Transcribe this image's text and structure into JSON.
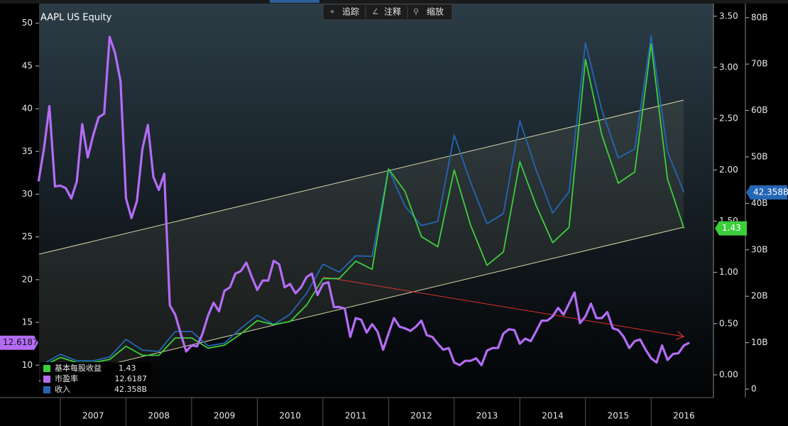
{
  "toolbar": [
    "追踪",
    "注释",
    "缩放"
  ],
  "chart_data": {
    "type": "line",
    "title": "AAPL US Equity",
    "xlim": [
      2006.675,
      2016.95
    ],
    "xticks": [
      2007,
      2008,
      2009,
      2010,
      2011,
      2012,
      2013,
      2014,
      2015,
      2016
    ],
    "ylim": [
      6.2,
      52.3
    ],
    "yticks": [
      10,
      15,
      20,
      25,
      30,
      35,
      40,
      45,
      50
    ],
    "y2lim": [
      -0.222,
      3.624
    ],
    "y2ticks": [
      {
        "value": 0,
        "label": "0.00"
      },
      {
        "value": 0.5,
        "label": "0.50"
      },
      {
        "value": 1,
        "label": "1.00"
      },
      {
        "value": 1.5,
        "label": "1.50"
      },
      {
        "value": 2,
        "label": "2.00"
      },
      {
        "value": 2.5,
        "label": "2.50"
      },
      {
        "value": 3,
        "label": "3.00"
      },
      {
        "value": 3.5,
        "label": "3.50"
      }
    ],
    "y3lim": [
      -1.835,
      83.03
    ],
    "y3ticks": [
      0,
      {
        "value": 10,
        "label": "10B"
      },
      {
        "value": 20,
        "label": "20B"
      },
      {
        "value": 30,
        "label": "30B"
      },
      {
        "value": 40,
        "label": "40B"
      },
      {
        "value": 50,
        "label": "50B"
      },
      {
        "value": 60,
        "label": "60B"
      },
      {
        "value": 70,
        "label": "70B"
      },
      {
        "value": 80,
        "label": "80B"
      }
    ],
    "legend": "lower left",
    "series": [
      {
        "name": "基本每股收益",
        "color": "#3ccf3c",
        "axis": "y2",
        "x": [
          2006.75,
          2007,
          2007.25,
          2007.5,
          2007.75,
          2008,
          2008.25,
          2008.5,
          2008.75,
          2009,
          2009.25,
          2009.5,
          2009.75,
          2010,
          2010.25,
          2010.5,
          2010.75,
          2011,
          2011.25,
          2011.5,
          2011.75,
          2012,
          2012.25,
          2012.5,
          2012.75,
          2013,
          2013.25,
          2013.5,
          2013.75,
          2014,
          2014.25,
          2014.5,
          2014.75,
          2015,
          2015.25,
          2015.5,
          2015.75,
          2016,
          2016.25,
          2016.5
        ],
        "values": [
          0.09,
          0.17,
          0.12,
          0.12,
          0.15,
          0.28,
          0.19,
          0.19,
          0.36,
          0.36,
          0.26,
          0.29,
          0.4,
          0.53,
          0.49,
          0.52,
          0.68,
          0.94,
          0.94,
          1.11,
          1.03,
          2.01,
          1.79,
          1.35,
          1.25,
          2.0,
          1.46,
          1.07,
          1.2,
          2.08,
          1.65,
          1.29,
          1.44,
          3.08,
          2.34,
          1.87,
          1.98,
          3.23,
          1.91,
          1.43
        ]
      },
      {
        "name": "市盈率",
        "color": "#b46cf5",
        "axis": "y",
        "x": [
          2006.667,
          2006.75,
          2006.833,
          2006.917,
          2007,
          2007.083,
          2007.167,
          2007.25,
          2007.333,
          2007.417,
          2007.5,
          2007.583,
          2007.667,
          2007.75,
          2007.833,
          2007.917,
          2008,
          2008.083,
          2008.167,
          2008.25,
          2008.333,
          2008.417,
          2008.5,
          2008.583,
          2008.667,
          2008.75,
          2008.833,
          2008.917,
          2009,
          2009.083,
          2009.167,
          2009.25,
          2009.333,
          2009.417,
          2009.5,
          2009.583,
          2009.667,
          2009.75,
          2009.833,
          2009.917,
          2010,
          2010.083,
          2010.167,
          2010.25,
          2010.333,
          2010.417,
          2010.5,
          2010.583,
          2010.667,
          2010.75,
          2010.833,
          2010.917,
          2011,
          2011.083,
          2011.167,
          2011.25,
          2011.333,
          2011.417,
          2011.5,
          2011.583,
          2011.667,
          2011.75,
          2011.833,
          2011.917,
          2012,
          2012.083,
          2012.167,
          2012.25,
          2012.333,
          2012.417,
          2012.5,
          2012.583,
          2012.667,
          2012.75,
          2012.833,
          2012.917,
          2013,
          2013.083,
          2013.167,
          2013.25,
          2013.333,
          2013.417,
          2013.5,
          2013.583,
          2013.667,
          2013.75,
          2013.833,
          2013.917,
          2014,
          2014.083,
          2014.167,
          2014.25,
          2014.333,
          2014.417,
          2014.5,
          2014.583,
          2014.667,
          2014.75,
          2014.833,
          2014.917,
          2015,
          2015.083,
          2015.167,
          2015.25,
          2015.333,
          2015.417,
          2015.5,
          2015.583,
          2015.667,
          2015.75,
          2015.833,
          2015.917,
          2016,
          2016.083,
          2016.167,
          2016.25,
          2016.333,
          2016.417,
          2016.5,
          2016.583
        ],
        "values": [
          31.5,
          35.3,
          40.3,
          30.9,
          31.0,
          30.7,
          29.5,
          31.5,
          38.2,
          34.3,
          36.9,
          39.0,
          39.4,
          48.4,
          46.5,
          43.2,
          29.5,
          27.2,
          29.2,
          35.3,
          38.1,
          32.0,
          30.5,
          32.4,
          17.0,
          15.9,
          13.7,
          11.6,
          12.3,
          12.2,
          13.7,
          15.8,
          17.3,
          16.3,
          18.7,
          19.1,
          20.7,
          21.0,
          22.0,
          20.3,
          18.8,
          19.9,
          19.9,
          22.2,
          21.8,
          19.1,
          19.5,
          18.4,
          19.1,
          20.3,
          20.7,
          18.2,
          19.5,
          19.7,
          16.8,
          16.8,
          16.6,
          13.3,
          15.5,
          15.3,
          13.8,
          14.8,
          13.9,
          11.8,
          13.7,
          15.5,
          14.5,
          14.3,
          14.0,
          14.5,
          15.2,
          13.5,
          13.3,
          12.5,
          11.8,
          12.0,
          10.3,
          10.0,
          10.5,
          10.5,
          10.8,
          10.0,
          11.7,
          12.0,
          12.0,
          13.7,
          14.2,
          14.1,
          12.5,
          13.1,
          12.8,
          14.0,
          15.2,
          15.2,
          15.7,
          16.7,
          15.9,
          17.2,
          18.5,
          14.9,
          15.7,
          17.2,
          15.5,
          15.5,
          16.2,
          14.3,
          14.1,
          13.3,
          12.0,
          12.8,
          13.0,
          11.8,
          10.8,
          10.3,
          12.3,
          10.6,
          11.3,
          11.4,
          12.3,
          12.6187
        ]
      },
      {
        "name": "收入",
        "color": "#2466b4",
        "axis": "y3",
        "last_label": "42.358B",
        "x": [
          2006.75,
          2007,
          2007.25,
          2007.5,
          2007.75,
          2008,
          2008.25,
          2008.5,
          2008.75,
          2009,
          2009.25,
          2009.5,
          2009.75,
          2010,
          2010.25,
          2010.5,
          2010.75,
          2011,
          2011.25,
          2011.5,
          2011.75,
          2012,
          2012.25,
          2012.5,
          2012.75,
          2013,
          2013.25,
          2013.5,
          2013.75,
          2014,
          2014.25,
          2014.5,
          2014.75,
          2015,
          2015.25,
          2015.5,
          2015.75,
          2016,
          2016.25,
          2016.5
        ],
        "values": [
          5.5,
          7.5,
          6.1,
          6.1,
          6.9,
          10.7,
          8.4,
          8.1,
          12.4,
          12.4,
          9.3,
          9.9,
          13.1,
          15.9,
          13.9,
          16.1,
          20.6,
          26.9,
          25.2,
          28.7,
          28.6,
          47.4,
          39.4,
          35.2,
          36.1,
          54.7,
          44.5,
          35.6,
          37.8,
          57.8,
          47.1,
          37.9,
          42.5,
          74.6,
          60.1,
          49.8,
          51.7,
          76.1,
          51.1,
          42.358
        ]
      }
    ]
  }
}
